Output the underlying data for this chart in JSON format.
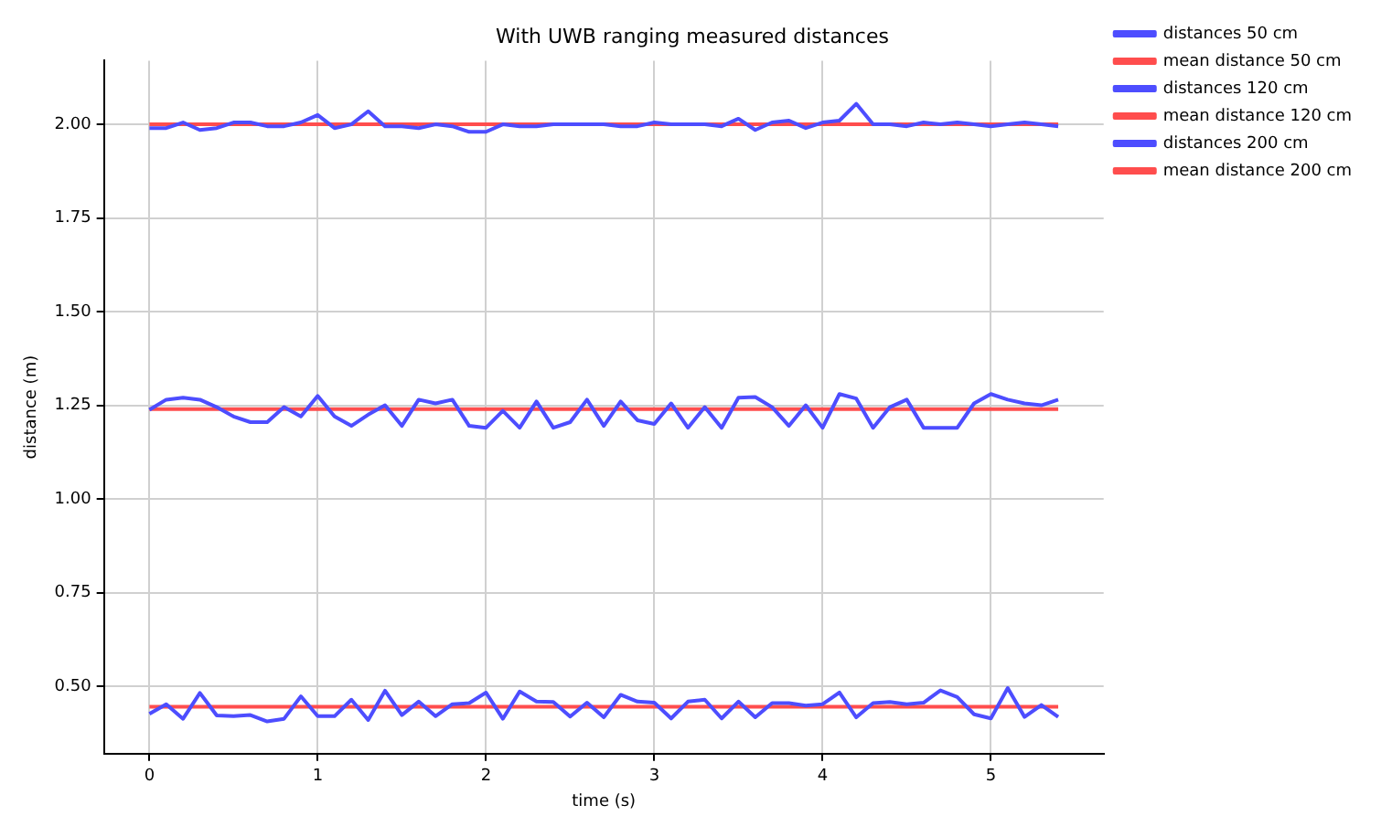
{
  "chart_data": {
    "type": "line",
    "title": "With UWB ranging measured distances",
    "xlabel": "time (s)",
    "ylabel": "distance (m)",
    "x": [
      0,
      0.1,
      0.2,
      0.3,
      0.4,
      0.5,
      0.6,
      0.7,
      0.8,
      0.9,
      1,
      1.1,
      1.2,
      1.3,
      1.4,
      1.5,
      1.6,
      1.7,
      1.8,
      1.9,
      2,
      2.1,
      2.2,
      2.3,
      2.4,
      2.5,
      2.6,
      2.7,
      2.8,
      2.9,
      3,
      3.1,
      3.2,
      3.3,
      3.4,
      3.5,
      3.6,
      3.7,
      3.8,
      3.9,
      4,
      4.1,
      4.2,
      4.3,
      4.4,
      4.5,
      4.6,
      4.7,
      4.8,
      4.9,
      5,
      5.1,
      5.2,
      5.3,
      5.4
    ],
    "series": [
      {
        "name": "distances 50 cm",
        "color": "#4d4dff",
        "values": [
          0.426,
          0.452,
          0.413,
          0.482,
          0.422,
          0.42,
          0.423,
          0.406,
          0.413,
          0.473,
          0.42,
          0.42,
          0.464,
          0.41,
          0.488,
          0.423,
          0.459,
          0.42,
          0.452,
          0.455,
          0.483,
          0.413,
          0.486,
          0.459,
          0.458,
          0.419,
          0.456,
          0.417,
          0.477,
          0.459,
          0.456,
          0.414,
          0.459,
          0.464,
          0.414,
          0.459,
          0.417,
          0.455,
          0.455,
          0.448,
          0.452,
          0.483,
          0.417,
          0.455,
          0.458,
          0.452,
          0.456,
          0.489,
          0.471,
          0.425,
          0.414,
          0.495,
          0.418,
          0.45,
          0.418
        ]
      },
      {
        "name": "mean distance 50 cm",
        "color": "#ff4d4d",
        "values": [
          0.445,
          0.445,
          0.445,
          0.445,
          0.445,
          0.445,
          0.445,
          0.445,
          0.445,
          0.445,
          0.445,
          0.445,
          0.445,
          0.445,
          0.445,
          0.445,
          0.445,
          0.445,
          0.445,
          0.445,
          0.445,
          0.445,
          0.445,
          0.445,
          0.445,
          0.445,
          0.445,
          0.445,
          0.445,
          0.445,
          0.445,
          0.445,
          0.445,
          0.445,
          0.445,
          0.445,
          0.445,
          0.445,
          0.445,
          0.445,
          0.445,
          0.445,
          0.445,
          0.445,
          0.445,
          0.445,
          0.445,
          0.445,
          0.445,
          0.445,
          0.445,
          0.445,
          0.445,
          0.445,
          0.445
        ]
      },
      {
        "name": "distances 120 cm",
        "color": "#4d4dff",
        "values": [
          1.238,
          1.265,
          1.27,
          1.265,
          1.245,
          1.22,
          1.205,
          1.205,
          1.245,
          1.22,
          1.275,
          1.22,
          1.195,
          1.225,
          1.25,
          1.195,
          1.265,
          1.255,
          1.265,
          1.195,
          1.19,
          1.235,
          1.19,
          1.26,
          1.19,
          1.205,
          1.265,
          1.195,
          1.26,
          1.21,
          1.2,
          1.255,
          1.19,
          1.245,
          1.19,
          1.27,
          1.272,
          1.245,
          1.195,
          1.25,
          1.19,
          1.28,
          1.268,
          1.19,
          1.245,
          1.265,
          1.19,
          1.19,
          1.19,
          1.255,
          1.28,
          1.265,
          1.255,
          1.25,
          1.265
        ]
      },
      {
        "name": "mean distance 120 cm",
        "color": "#ff4d4d",
        "values": [
          1.24,
          1.24,
          1.24,
          1.24,
          1.24,
          1.24,
          1.24,
          1.24,
          1.24,
          1.24,
          1.24,
          1.24,
          1.24,
          1.24,
          1.24,
          1.24,
          1.24,
          1.24,
          1.24,
          1.24,
          1.24,
          1.24,
          1.24,
          1.24,
          1.24,
          1.24,
          1.24,
          1.24,
          1.24,
          1.24,
          1.24,
          1.24,
          1.24,
          1.24,
          1.24,
          1.24,
          1.24,
          1.24,
          1.24,
          1.24,
          1.24,
          1.24,
          1.24,
          1.24,
          1.24,
          1.24,
          1.24,
          1.24,
          1.24,
          1.24,
          1.24,
          1.24,
          1.24,
          1.24,
          1.24
        ]
      },
      {
        "name": "distances 200 cm",
        "color": "#4d4dff",
        "values": [
          1.99,
          1.99,
          2.005,
          1.985,
          1.99,
          2.005,
          2.005,
          1.995,
          1.995,
          2.005,
          2.025,
          1.99,
          2.0,
          2.035,
          1.995,
          1.995,
          1.99,
          2.0,
          1.995,
          1.98,
          1.98,
          2.0,
          1.995,
          1.995,
          2.0,
          2.0,
          2.0,
          2.0,
          1.995,
          1.995,
          2.005,
          2.0,
          2.0,
          2.0,
          1.995,
          2.015,
          1.985,
          2.005,
          2.01,
          1.99,
          2.005,
          2.01,
          2.055,
          2.0,
          2.0,
          1.995,
          2.005,
          2.0,
          2.005,
          2.0,
          1.995,
          2.0,
          2.005,
          2.0,
          1.995
        ]
      },
      {
        "name": "mean distance 200 cm",
        "color": "#ff4d4d",
        "values": [
          2.0,
          2.0,
          2.0,
          2.0,
          2.0,
          2.0,
          2.0,
          2.0,
          2.0,
          2.0,
          2.0,
          2.0,
          2.0,
          2.0,
          2.0,
          2.0,
          2.0,
          2.0,
          2.0,
          2.0,
          2.0,
          2.0,
          2.0,
          2.0,
          2.0,
          2.0,
          2.0,
          2.0,
          2.0,
          2.0,
          2.0,
          2.0,
          2.0,
          2.0,
          2.0,
          2.0,
          2.0,
          2.0,
          2.0,
          2.0,
          2.0,
          2.0,
          2.0,
          2.0,
          2.0,
          2.0,
          2.0,
          2.0,
          2.0,
          2.0,
          2.0,
          2.0,
          2.0,
          2.0,
          2.0
        ]
      }
    ],
    "xlim": [
      -0.27,
      5.67
    ],
    "ylim": [
      0.32,
      2.17
    ],
    "xticks": [
      0,
      1,
      2,
      3,
      4,
      5
    ],
    "yticks": [
      {
        "value": 0.5,
        "label": "0.50"
      },
      {
        "value": 0.75,
        "label": "0.75"
      },
      {
        "value": 1,
        "label": "1.00"
      },
      {
        "value": 1.25,
        "label": "1.25"
      },
      {
        "value": 1.5,
        "label": "1.50"
      },
      {
        "value": 1.75,
        "label": "1.75"
      },
      {
        "value": 2,
        "label": "2.00"
      }
    ],
    "grid": true,
    "legend": "top right",
    "marker": "none",
    "line_style": "solid"
  }
}
